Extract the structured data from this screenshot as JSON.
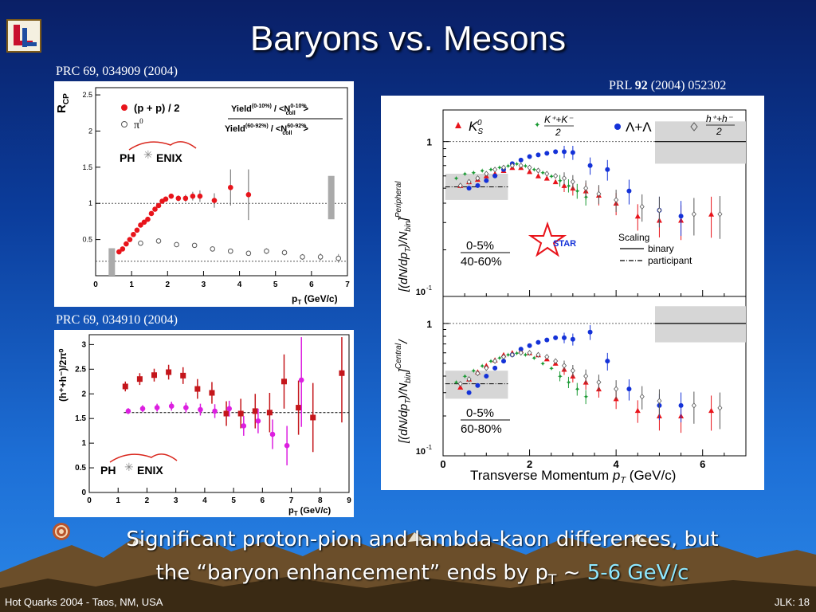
{
  "slide": {
    "title": "Baryons vs. Mesons",
    "ref_top_left": "PRC 69, 034909 (2004)",
    "ref_mid_left": "PRC 69, 034910 (2004)",
    "ref_right_a": "PRL ",
    "ref_right_b": "92",
    "ref_right_c": " (2004) 052302",
    "bottom_line1": "Significant proton-pion and lambda-kaon differences, but",
    "bottom_line2": "the “baryon enhancement” ends by p",
    "bottom_sub": "T",
    "bottom_tail": " ~ ",
    "bottom_gev": "5-6 GeV/c",
    "footer_left": "Hot Quarks 2004 - Taos, NM, USA",
    "footer_right": "JLK: 18"
  },
  "icons": {
    "logo": "ll-conference-logo-icon",
    "bullet": "swirl-bullet-icon",
    "mountains": "mountain-range"
  },
  "colors": {
    "red": "#e8141b",
    "blue": "#1432d8",
    "green": "#1a9a33",
    "magenta": "#dc1fe0",
    "darkred": "#c4161b"
  },
  "chart_data": [
    {
      "type": "scatter",
      "ylabel_main": "R",
      "ylabel_sub": "CP",
      "xlabel_main": "p",
      "xlabel_sub": "T",
      "xlabel_unit": " (GeV/c)",
      "xlim": [
        0,
        7
      ],
      "ylim": [
        0,
        2.6
      ],
      "xticks": [
        "0",
        "1",
        "2",
        "3",
        "4",
        "5",
        "6",
        "7"
      ],
      "yticks": [
        "0.5",
        "1",
        "1.5",
        "2",
        "2.5"
      ],
      "legend": {
        "entry1": "(p + p) / 2",
        "entry2": "π",
        "entry2_sup": "0",
        "ratio_num": "Yield",
        "ratio_num_sup": "(0-10%)",
        "ratio_num_tail": " / <N",
        "ratio_num_sup2": "0-10%",
        "ratio_num_sub2": "coll",
        "ratio_num_end": ">",
        "ratio_den": "Yield",
        "ratio_den_sup": "(60-92%)",
        "ratio_den_tail": " / <N",
        "ratio_den_sup2": "60-92%",
        "ratio_den_sub2": "coll",
        "ratio_den_end": ">"
      },
      "logo_a": "PH",
      "logo_b": "ENIX",
      "series": [
        {
          "name": "(p + p) / 2",
          "x": [
            0.65,
            0.75,
            0.85,
            0.95,
            1.05,
            1.15,
            1.25,
            1.35,
            1.45,
            1.55,
            1.65,
            1.75,
            1.85,
            1.95,
            2.1,
            2.3,
            2.5,
            2.7,
            2.9,
            3.3,
            3.75,
            4.25
          ],
          "y": [
            0.33,
            0.37,
            0.44,
            0.5,
            0.57,
            0.63,
            0.7,
            0.74,
            0.78,
            0.86,
            0.92,
            0.97,
            1.03,
            1.06,
            1.1,
            1.07,
            1.07,
            1.1,
            1.1,
            1.04,
            1.22,
            1.12
          ],
          "err": [
            0.01,
            0.01,
            0.01,
            0.01,
            0.01,
            0.01,
            0.01,
            0.01,
            0.01,
            0.02,
            0.02,
            0.02,
            0.03,
            0.03,
            0.03,
            0.04,
            0.05,
            0.06,
            0.08,
            0.1,
            0.25,
            0.35
          ]
        },
        {
          "name": "π0",
          "x": [
            1.25,
            1.75,
            2.25,
            2.75,
            3.25,
            3.75,
            4.25,
            4.75,
            5.25,
            5.75,
            6.25,
            6.75
          ],
          "y": [
            0.45,
            0.48,
            0.43,
            0.42,
            0.37,
            0.34,
            0.31,
            0.34,
            0.32,
            0.26,
            0.26,
            0.24
          ],
          "err": [
            0.02,
            0.03,
            0.03,
            0.03,
            0.03,
            0.03,
            0.03,
            0.04,
            0.04,
            0.04,
            0.05,
            0.06
          ]
        }
      ]
    },
    {
      "type": "scatter",
      "ylabel": "(h⁺+h⁻)/2π⁰",
      "xlabel_main": "p",
      "xlabel_sub": "T",
      "xlabel_unit": " (GeV/c)",
      "xlim": [
        0,
        9
      ],
      "ylim": [
        0,
        3.2
      ],
      "xticks": [
        "0",
        "1",
        "2",
        "3",
        "4",
        "5",
        "6",
        "7",
        "8",
        "9"
      ],
      "yticks": [
        "0",
        "0.5",
        "1",
        "1.5",
        "2",
        "2.5",
        "3"
      ],
      "logo_a": "PH",
      "logo_b": "ENIX",
      "series": [
        {
          "name": "red",
          "x": [
            1.25,
            1.75,
            2.25,
            2.75,
            3.25,
            3.75,
            4.25,
            4.75,
            5.25,
            5.75,
            6.25,
            6.75,
            7.25,
            7.75,
            8.75
          ],
          "y": [
            2.15,
            2.3,
            2.38,
            2.44,
            2.37,
            2.1,
            2.02,
            1.6,
            1.6,
            1.65,
            1.62,
            2.25,
            1.72,
            1.52,
            2.42
          ],
          "err": [
            0.1,
            0.12,
            0.13,
            0.15,
            0.17,
            0.2,
            0.22,
            0.25,
            0.3,
            0.35,
            0.4,
            0.55,
            0.55,
            0.7,
            1.0
          ]
        },
        {
          "name": "magenta",
          "x": [
            1.35,
            1.85,
            2.35,
            2.85,
            3.35,
            3.85,
            4.35,
            4.85,
            5.35,
            5.85,
            6.35,
            6.85,
            7.35
          ],
          "y": [
            1.65,
            1.7,
            1.72,
            1.75,
            1.72,
            1.68,
            1.65,
            1.7,
            1.35,
            1.45,
            1.18,
            0.95,
            2.28
          ],
          "err": [
            0.06,
            0.07,
            0.08,
            0.09,
            0.1,
            0.12,
            0.14,
            0.16,
            0.2,
            0.25,
            0.3,
            0.4,
            0.95
          ]
        }
      ]
    },
    {
      "type": "scatter",
      "xlabel": "Transverse Momentum ",
      "xlabel_p": "p",
      "xlabel_sub": "T",
      "xlabel_unit": " (GeV/c)",
      "ylabel_top_a": "[(dN/dp",
      "ylabel_top_sub": "T",
      "ylabel_top_b": ")/N",
      "ylabel_top_sub2": "bin",
      "ylabel_top_c": "]",
      "ylabel_top_sup": "Peripheral",
      "ylabel_bot_a": "[(dN/dp",
      "ylabel_bot_sub": "T",
      "ylabel_bot_b": ")/N",
      "ylabel_bot_sub2": "bin",
      "ylabel_bot_c": "]",
      "ylabel_bot_sup": "Central",
      "ylabel_bot_slash": "/",
      "xlim": [
        0,
        7
      ],
      "ylim_log": [
        0.1,
        1.6
      ],
      "xticks": [
        "0",
        "2",
        "4",
        "6"
      ],
      "yticks": [
        "10",
        "1"
      ],
      "ytick_sup": "-1",
      "legend_k0": "K",
      "legend_k0_sub": "S",
      "legend_k0_sup": "0",
      "legend_kk_num": "K⁺+K⁻",
      "legend_kk_den": "2",
      "legend_lam": "Λ+Λ",
      "legend_hh_num": "h⁺+h⁻",
      "legend_hh_den": "2",
      "top_centrality_num": "0-5%",
      "top_centrality_den": "40-60%",
      "bot_centrality_num": "0-5%",
      "bot_centrality_den": "60-80%",
      "star_label": "STAR",
      "scaling_title": "Scaling",
      "scaling_binary": "binary",
      "scaling_participant": "participant",
      "series_top": [
        {
          "name": "K0S",
          "x": [
            0.4,
            0.6,
            0.8,
            1.0,
            1.2,
            1.4,
            1.6,
            1.8,
            2.0,
            2.2,
            2.4,
            2.6,
            2.8,
            3.0,
            3.3,
            3.6,
            4.0,
            4.5,
            5.0,
            5.5,
            6.2
          ],
          "y": [
            0.52,
            0.55,
            0.57,
            0.6,
            0.62,
            0.65,
            0.68,
            0.68,
            0.64,
            0.6,
            0.58,
            0.55,
            0.52,
            0.5,
            0.48,
            0.45,
            0.4,
            0.33,
            0.31,
            0.31,
            0.34
          ]
        },
        {
          "name": "K+K-/2",
          "x": [
            0.3,
            0.5,
            0.7,
            0.9,
            1.1,
            1.3,
            1.5,
            1.7,
            1.9,
            2.1,
            2.3,
            2.5,
            2.7,
            2.9,
            3.1,
            3.3
          ],
          "y": [
            0.58,
            0.62,
            0.63,
            0.65,
            0.66,
            0.68,
            0.7,
            0.72,
            0.7,
            0.66,
            0.63,
            0.6,
            0.56,
            0.52,
            0.48,
            0.44
          ]
        },
        {
          "name": "Lambda",
          "x": [
            0.6,
            0.8,
            1.0,
            1.2,
            1.4,
            1.6,
            1.8,
            2.0,
            2.2,
            2.4,
            2.6,
            2.8,
            3.0,
            3.4,
            3.8,
            4.3,
            5.0,
            5.5
          ],
          "y": [
            0.5,
            0.52,
            0.56,
            0.6,
            0.66,
            0.72,
            0.76,
            0.8,
            0.82,
            0.84,
            0.86,
            0.86,
            0.85,
            0.7,
            0.66,
            0.48,
            0.36,
            0.33
          ]
        },
        {
          "name": "hh/2",
          "x": [
            0.4,
            0.6,
            0.8,
            1.0,
            1.2,
            1.4,
            1.6,
            1.8,
            2.0,
            2.2,
            2.4,
            2.6,
            2.8,
            3.0,
            3.3,
            3.6,
            4.0,
            4.6,
            5.0,
            5.8,
            6.4
          ],
          "y": [
            0.52,
            0.55,
            0.58,
            0.62,
            0.66,
            0.68,
            0.7,
            0.7,
            0.68,
            0.65,
            0.62,
            0.6,
            0.58,
            0.55,
            0.5,
            0.46,
            0.42,
            0.38,
            0.36,
            0.34,
            0.34
          ]
        }
      ],
      "series_bottom": [
        {
          "name": "K0S",
          "x": [
            0.4,
            0.6,
            0.8,
            1.0,
            1.2,
            1.4,
            1.6,
            1.8,
            2.0,
            2.2,
            2.4,
            2.6,
            2.8,
            3.0,
            3.3,
            3.6,
            4.0,
            4.5,
            5.0,
            5.5,
            6.2
          ],
          "y": [
            0.33,
            0.38,
            0.43,
            0.48,
            0.53,
            0.58,
            0.6,
            0.62,
            0.6,
            0.58,
            0.54,
            0.5,
            0.45,
            0.4,
            0.36,
            0.32,
            0.27,
            0.22,
            0.2,
            0.2,
            0.22
          ]
        },
        {
          "name": "K+K-/2",
          "x": [
            0.3,
            0.5,
            0.7,
            0.9,
            1.1,
            1.3,
            1.5,
            1.7,
            1.9,
            2.1,
            2.3,
            2.5,
            2.7,
            2.9,
            3.1,
            3.3
          ],
          "y": [
            0.36,
            0.4,
            0.44,
            0.48,
            0.52,
            0.55,
            0.58,
            0.6,
            0.58,
            0.55,
            0.5,
            0.46,
            0.4,
            0.36,
            0.32,
            0.28
          ]
        },
        {
          "name": "Lambda",
          "x": [
            0.6,
            0.8,
            1.0,
            1.2,
            1.4,
            1.6,
            1.8,
            2.0,
            2.2,
            2.4,
            2.6,
            2.8,
            3.0,
            3.4,
            3.8,
            4.3,
            5.0,
            5.5
          ],
          "y": [
            0.3,
            0.34,
            0.4,
            0.46,
            0.52,
            0.58,
            0.64,
            0.68,
            0.72,
            0.75,
            0.78,
            0.78,
            0.76,
            0.86,
            0.52,
            0.32,
            0.24,
            0.24
          ]
        },
        {
          "name": "hh/2",
          "x": [
            0.4,
            0.6,
            0.8,
            1.0,
            1.2,
            1.4,
            1.6,
            1.8,
            2.0,
            2.2,
            2.4,
            2.6,
            2.8,
            3.0,
            3.3,
            3.6,
            4.0,
            4.6,
            5.0,
            5.8,
            6.4
          ],
          "y": [
            0.35,
            0.38,
            0.42,
            0.46,
            0.52,
            0.56,
            0.58,
            0.6,
            0.6,
            0.58,
            0.56,
            0.52,
            0.48,
            0.44,
            0.4,
            0.36,
            0.32,
            0.28,
            0.26,
            0.24,
            0.23
          ]
        }
      ]
    }
  ]
}
